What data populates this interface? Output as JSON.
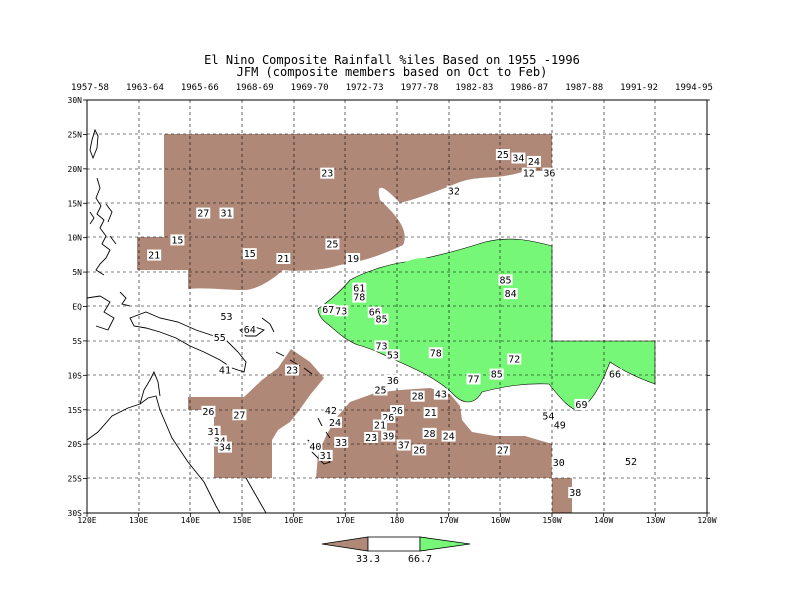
{
  "title": {
    "line1": "El Nino Composite Rainfall %iles Based on 1955 -1996",
    "line2": "JFM (composite members based on Oct to Feb)"
  },
  "composite_years": [
    "1957-58",
    "1963-64",
    "1965-66",
    "1968-69",
    "1969-70",
    "1972-73",
    "1977-78",
    "1982-83",
    "1986-87",
    "1987-88",
    "1991-92",
    "1994-95"
  ],
  "lat_ticks": [
    "30N",
    "25N",
    "20N",
    "15N",
    "10N",
    "5N",
    "EQ",
    "5S",
    "10S",
    "15S",
    "20S",
    "25S",
    "30S"
  ],
  "lon_ticks": [
    "120E",
    "130E",
    "140E",
    "150E",
    "160E",
    "170E",
    "180",
    "170W",
    "160W",
    "150W",
    "140W",
    "130W",
    "120W"
  ],
  "legend": {
    "low_label": "33.3",
    "high_label": "66.7",
    "dry_color": "#b08878",
    "wet_color": "#77f777"
  },
  "station_values": [
    {
      "v": "25",
      "lon": 200.5,
      "lat": 22.0
    },
    {
      "v": "34",
      "lon": 203.5,
      "lat": 21.5
    },
    {
      "v": "24",
      "lon": 206.5,
      "lat": 21.0
    },
    {
      "v": "12",
      "lon": 205.5,
      "lat": 19.3
    },
    {
      "v": "36",
      "lon": 209.5,
      "lat": 19.3
    },
    {
      "v": "23",
      "lon": 166.5,
      "lat": 19.3
    },
    {
      "v": "32",
      "lon": 191.0,
      "lat": 16.7
    },
    {
      "v": "27",
      "lon": 142.5,
      "lat": 13.5
    },
    {
      "v": "31",
      "lon": 147.0,
      "lat": 13.5
    },
    {
      "v": "15",
      "lon": 137.5,
      "lat": 9.6
    },
    {
      "v": "25",
      "lon": 167.5,
      "lat": 9.0
    },
    {
      "v": "21",
      "lon": 133.0,
      "lat": 7.4
    },
    {
      "v": "15",
      "lon": 151.5,
      "lat": 7.6
    },
    {
      "v": "21",
      "lon": 158.0,
      "lat": 6.9
    },
    {
      "v": "19",
      "lon": 171.5,
      "lat": 6.9
    },
    {
      "v": "85",
      "lon": 201.0,
      "lat": 3.8
    },
    {
      "v": "61",
      "lon": 172.7,
      "lat": 2.6
    },
    {
      "v": "84",
      "lon": 202.0,
      "lat": 1.8
    },
    {
      "v": "78",
      "lon": 172.7,
      "lat": 1.3
    },
    {
      "v": "67",
      "lon": 166.7,
      "lat": -0.5
    },
    {
      "v": "73",
      "lon": 169.2,
      "lat": -0.7
    },
    {
      "v": "66",
      "lon": 175.7,
      "lat": -0.9
    },
    {
      "v": "53",
      "lon": 147.0,
      "lat": -1.5
    },
    {
      "v": "85",
      "lon": 177.0,
      "lat": -1.9
    },
    {
      "v": "64",
      "lon": 151.5,
      "lat": -3.4
    },
    {
      "v": "55",
      "lon": 145.7,
      "lat": -4.6
    },
    {
      "v": "73",
      "lon": 177.0,
      "lat": -5.8
    },
    {
      "v": "53",
      "lon": 179.2,
      "lat": -7.1
    },
    {
      "v": "78",
      "lon": 187.5,
      "lat": -6.8
    },
    {
      "v": "72",
      "lon": 202.7,
      "lat": -7.7
    },
    {
      "v": "41",
      "lon": 146.7,
      "lat": -9.3
    },
    {
      "v": "23",
      "lon": 159.7,
      "lat": -9.3
    },
    {
      "v": "85",
      "lon": 199.3,
      "lat": -9.9
    },
    {
      "v": "66",
      "lon": 222.2,
      "lat": -9.9
    },
    {
      "v": "77",
      "lon": 194.8,
      "lat": -10.6
    },
    {
      "v": "36",
      "lon": 179.2,
      "lat": -10.8
    },
    {
      "v": "25",
      "lon": 176.8,
      "lat": -12.2
    },
    {
      "v": "28",
      "lon": 184.0,
      "lat": -13.1
    },
    {
      "v": "43",
      "lon": 188.5,
      "lat": -12.8
    },
    {
      "v": "69",
      "lon": 215.7,
      "lat": -14.3
    },
    {
      "v": "26",
      "lon": 143.5,
      "lat": -15.3
    },
    {
      "v": "27",
      "lon": 149.5,
      "lat": -15.8
    },
    {
      "v": "42",
      "lon": 167.2,
      "lat": -15.2
    },
    {
      "v": "26",
      "lon": 180.0,
      "lat": -15.2
    },
    {
      "v": "21",
      "lon": 186.5,
      "lat": -15.5
    },
    {
      "v": "54",
      "lon": 209.3,
      "lat": -16.0
    },
    {
      "v": "24",
      "lon": 168.0,
      "lat": -16.9
    },
    {
      "v": "26",
      "lon": 178.3,
      "lat": -16.2
    },
    {
      "v": "21",
      "lon": 176.7,
      "lat": -17.3
    },
    {
      "v": "49",
      "lon": 211.5,
      "lat": -17.3
    },
    {
      "v": "31",
      "lon": 144.5,
      "lat": -18.2
    },
    {
      "v": "28",
      "lon": 186.3,
      "lat": -18.5
    },
    {
      "v": "23",
      "lon": 175.0,
      "lat": -19.1
    },
    {
      "v": "39",
      "lon": 178.3,
      "lat": -18.9
    },
    {
      "v": "24",
      "lon": 190.0,
      "lat": -18.9
    },
    {
      "v": "34",
      "lon": 145.7,
      "lat": -19.6
    },
    {
      "v": "33",
      "lon": 169.2,
      "lat": -19.8
    },
    {
      "v": "37",
      "lon": 181.3,
      "lat": -20.2
    },
    {
      "v": "34",
      "lon": 146.7,
      "lat": -20.5
    },
    {
      "v": "40",
      "lon": 164.2,
      "lat": -20.4
    },
    {
      "v": "26",
      "lon": 184.3,
      "lat": -20.9
    },
    {
      "v": "27",
      "lon": 200.5,
      "lat": -20.9
    },
    {
      "v": "31",
      "lon": 166.2,
      "lat": -21.7
    },
    {
      "v": "30",
      "lon": 211.3,
      "lat": -22.7
    },
    {
      "v": "52",
      "lon": 225.3,
      "lat": -22.6
    },
    {
      "v": "38",
      "lon": 214.5,
      "lat": -27.1
    }
  ]
}
